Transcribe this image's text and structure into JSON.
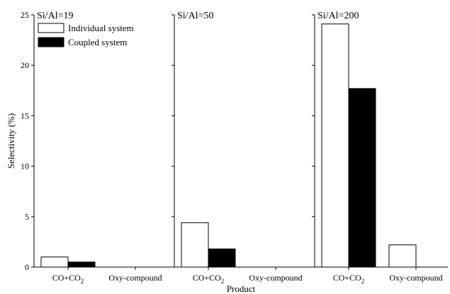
{
  "chart_data": {
    "type": "bar",
    "ylabel": "Selectivity (%)",
    "xlabel": "Product",
    "ylim": [
      0,
      25
    ],
    "yticks": [
      0,
      5,
      10,
      15,
      20,
      25
    ],
    "categories": [
      "CO+CO2",
      "Oxy-compound"
    ],
    "legend": {
      "placement": "top-left",
      "entries": [
        {
          "name": "Individual system",
          "fill": "#ffffff"
        },
        {
          "name": "Coupled system",
          "fill": "#000000"
        }
      ]
    },
    "panels": [
      {
        "title": "Si/Al=19",
        "series": [
          {
            "name": "Individual system",
            "values": [
              1.0,
              0.0
            ]
          },
          {
            "name": "Coupled system",
            "values": [
              0.5,
              0.0
            ]
          }
        ]
      },
      {
        "title": "Si/Al=50",
        "series": [
          {
            "name": "Individual system",
            "values": [
              4.4,
              0.0
            ]
          },
          {
            "name": "Coupled system",
            "values": [
              1.8,
              0.0
            ]
          }
        ]
      },
      {
        "title": "Si/Al=200",
        "series": [
          {
            "name": "Individual system",
            "values": [
              24.1,
              2.2
            ]
          },
          {
            "name": "Coupled system",
            "values": [
              17.7,
              0.0
            ]
          }
        ]
      }
    ]
  }
}
